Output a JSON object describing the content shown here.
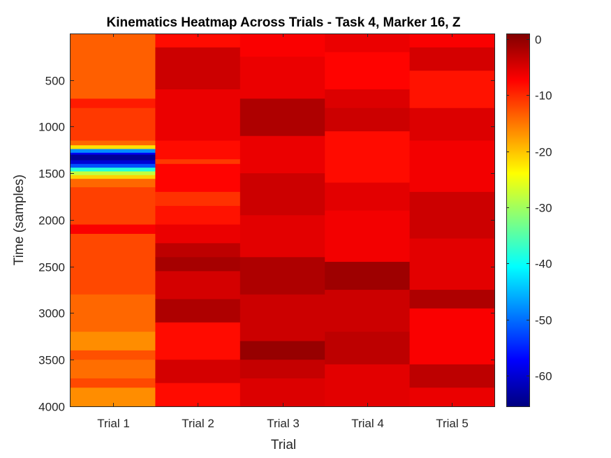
{
  "chart_data": {
    "type": "heatmap",
    "title": "Kinematics Heatmap Across Trials - Task 4, Marker 16, Z",
    "xlabel": "Trial",
    "ylabel": "Time (samples)",
    "x_categories": [
      "Trial 1",
      "Trial 2",
      "Trial 3",
      "Trial 4",
      "Trial 5"
    ],
    "ylim": [
      1,
      4000
    ],
    "y_direction": "reversed",
    "y_ticks": [
      500,
      1000,
      1500,
      2000,
      2500,
      3000,
      3500,
      4000
    ],
    "colormap": "jet",
    "clim": [
      -65.5,
      1
    ],
    "colorbar_ticks": [
      0,
      -10,
      -20,
      -30,
      -40,
      -50,
      -60
    ],
    "grid": false,
    "legend": "colorbar-right",
    "series": [
      {
        "category": "Trial 1",
        "segments": [
          {
            "start": 1,
            "end": 700,
            "value": -13.5
          },
          {
            "start": 700,
            "end": 800,
            "value": -9
          },
          {
            "start": 800,
            "end": 1150,
            "value": -11
          },
          {
            "start": 1150,
            "end": 1200,
            "value": -14
          },
          {
            "start": 1200,
            "end": 1240,
            "value": -22
          },
          {
            "start": 1240,
            "end": 1280,
            "value": -48
          },
          {
            "start": 1280,
            "end": 1300,
            "value": -58
          },
          {
            "start": 1300,
            "end": 1360,
            "value": -64
          },
          {
            "start": 1360,
            "end": 1400,
            "value": -60
          },
          {
            "start": 1400,
            "end": 1440,
            "value": -52
          },
          {
            "start": 1440,
            "end": 1480,
            "value": -38
          },
          {
            "start": 1480,
            "end": 1520,
            "value": -28
          },
          {
            "start": 1520,
            "end": 1560,
            "value": -21
          },
          {
            "start": 1560,
            "end": 1650,
            "value": -14
          },
          {
            "start": 1650,
            "end": 2050,
            "value": -11.5
          },
          {
            "start": 2050,
            "end": 2150,
            "value": -7
          },
          {
            "start": 2150,
            "end": 2800,
            "value": -12
          },
          {
            "start": 2800,
            "end": 3200,
            "value": -14
          },
          {
            "start": 3200,
            "end": 3400,
            "value": -16.5
          },
          {
            "start": 3400,
            "end": 3500,
            "value": -12.5
          },
          {
            "start": 3500,
            "end": 3700,
            "value": -14.5
          },
          {
            "start": 3700,
            "end": 3800,
            "value": -12
          },
          {
            "start": 3800,
            "end": 4000,
            "value": -16.5
          }
        ]
      },
      {
        "category": "Trial 2",
        "segments": [
          {
            "start": 1,
            "end": 150,
            "value": -8
          },
          {
            "start": 150,
            "end": 600,
            "value": -4
          },
          {
            "start": 600,
            "end": 1150,
            "value": -6
          },
          {
            "start": 1150,
            "end": 1350,
            "value": -8
          },
          {
            "start": 1350,
            "end": 1400,
            "value": -11
          },
          {
            "start": 1400,
            "end": 1700,
            "value": -7.5
          },
          {
            "start": 1700,
            "end": 1850,
            "value": -10.5
          },
          {
            "start": 1850,
            "end": 2050,
            "value": -8.5
          },
          {
            "start": 2050,
            "end": 2250,
            "value": -6
          },
          {
            "start": 2250,
            "end": 2400,
            "value": -3
          },
          {
            "start": 2400,
            "end": 2550,
            "value": -1.5
          },
          {
            "start": 2550,
            "end": 2850,
            "value": -4.5
          },
          {
            "start": 2850,
            "end": 3100,
            "value": -2
          },
          {
            "start": 3100,
            "end": 3500,
            "value": -8
          },
          {
            "start": 3500,
            "end": 3750,
            "value": -4.5
          },
          {
            "start": 3750,
            "end": 4000,
            "value": -8
          }
        ]
      },
      {
        "category": "Trial 3",
        "segments": [
          {
            "start": 1,
            "end": 250,
            "value": -7
          },
          {
            "start": 250,
            "end": 700,
            "value": -6
          },
          {
            "start": 700,
            "end": 1100,
            "value": -2
          },
          {
            "start": 1100,
            "end": 1500,
            "value": -6
          },
          {
            "start": 1500,
            "end": 1950,
            "value": -4
          },
          {
            "start": 1950,
            "end": 2400,
            "value": -5.5
          },
          {
            "start": 2400,
            "end": 2800,
            "value": -2
          },
          {
            "start": 2800,
            "end": 3300,
            "value": -4
          },
          {
            "start": 3300,
            "end": 3500,
            "value": -0.5
          },
          {
            "start": 3500,
            "end": 3700,
            "value": -3.5
          },
          {
            "start": 3700,
            "end": 4000,
            "value": -5
          }
        ]
      },
      {
        "category": "Trial 4",
        "segments": [
          {
            "start": 1,
            "end": 200,
            "value": -6
          },
          {
            "start": 200,
            "end": 600,
            "value": -7.5
          },
          {
            "start": 600,
            "end": 800,
            "value": -5
          },
          {
            "start": 800,
            "end": 1050,
            "value": -4
          },
          {
            "start": 1050,
            "end": 1600,
            "value": -8
          },
          {
            "start": 1600,
            "end": 1900,
            "value": -5.5
          },
          {
            "start": 1900,
            "end": 2450,
            "value": -6.5
          },
          {
            "start": 2450,
            "end": 2750,
            "value": -1
          },
          {
            "start": 2750,
            "end": 3200,
            "value": -4
          },
          {
            "start": 3200,
            "end": 3550,
            "value": -3
          },
          {
            "start": 3550,
            "end": 4000,
            "value": -5.5
          }
        ]
      },
      {
        "category": "Trial 5",
        "segments": [
          {
            "start": 1,
            "end": 150,
            "value": -7
          },
          {
            "start": 150,
            "end": 400,
            "value": -4.5
          },
          {
            "start": 400,
            "end": 800,
            "value": -8.5
          },
          {
            "start": 800,
            "end": 1150,
            "value": -5
          },
          {
            "start": 1150,
            "end": 1700,
            "value": -6.5
          },
          {
            "start": 1700,
            "end": 2200,
            "value": -4
          },
          {
            "start": 2200,
            "end": 2750,
            "value": -5.5
          },
          {
            "start": 2750,
            "end": 2950,
            "value": -2
          },
          {
            "start": 2950,
            "end": 3550,
            "value": -7
          },
          {
            "start": 3550,
            "end": 3800,
            "value": -3
          },
          {
            "start": 3800,
            "end": 4000,
            "value": -6
          }
        ]
      }
    ]
  }
}
